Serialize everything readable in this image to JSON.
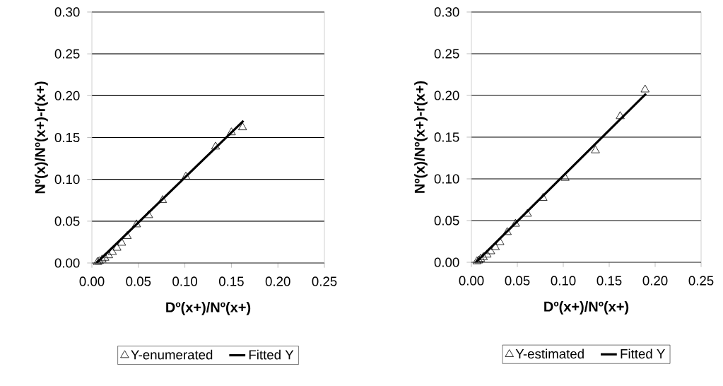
{
  "chart_data": [
    {
      "type": "scatter",
      "xlabel": "Dº(x+)/Nº(x+)",
      "ylabel": "Nº(x)/Nº(x+)-r(x+)",
      "xlim": [
        0,
        0.25
      ],
      "ylim": [
        0,
        0.3
      ],
      "xticks": [
        {
          "value": 0,
          "label": "0.00"
        },
        {
          "value": 0.05,
          "label": "0.05"
        },
        {
          "value": 0.1,
          "label": "0.10"
        },
        {
          "value": 0.15,
          "label": "0.15"
        },
        {
          "value": 0.2,
          "label": "0.20"
        },
        {
          "value": 0.25,
          "label": "0.25"
        }
      ],
      "yticks": [
        {
          "value": 0,
          "label": "0.00"
        },
        {
          "value": 0.05,
          "label": "0.05"
        },
        {
          "value": 0.1,
          "label": "0.10"
        },
        {
          "value": 0.15,
          "label": "0.15"
        },
        {
          "value": 0.2,
          "label": "0.20"
        },
        {
          "value": 0.25,
          "label": "0.25"
        },
        {
          "value": 0.3,
          "label": "0.30"
        }
      ],
      "grid": "y",
      "legend": "bottom",
      "series": [
        {
          "name": "Y-enumerated",
          "marker": "triangle",
          "color": "#000000",
          "x": [
            0.006,
            0.008,
            0.011,
            0.014,
            0.018,
            0.022,
            0.027,
            0.032,
            0.038,
            0.048,
            0.061,
            0.076,
            0.101,
            0.133,
            0.15,
            0.162
          ],
          "values": [
            0.001,
            0.002,
            0.004,
            0.006,
            0.009,
            0.013,
            0.018,
            0.024,
            0.032,
            0.046,
            0.057,
            0.075,
            0.103,
            0.139,
            0.156,
            0.162
          ]
        },
        {
          "name": "Fitted Y",
          "type": "line",
          "marker": "none",
          "line_style": "solid",
          "color": "#000000",
          "x": [
            0.005,
            0.163
          ],
          "values": [
            0.0,
            0.17
          ]
        }
      ]
    },
    {
      "type": "scatter",
      "xlabel": "Dº(x+)/Nº(x+)",
      "ylabel": "Nº(x)/Nº(x+)-r(x+)",
      "xlim": [
        0,
        0.25
      ],
      "ylim": [
        0,
        0.3
      ],
      "xticks": [
        {
          "value": 0,
          "label": "0.00"
        },
        {
          "value": 0.05,
          "label": "0.05"
        },
        {
          "value": 0.1,
          "label": "0.10"
        },
        {
          "value": 0.15,
          "label": "0.15"
        },
        {
          "value": 0.2,
          "label": "0.20"
        },
        {
          "value": 0.25,
          "label": "0.25"
        }
      ],
      "yticks": [
        {
          "value": 0,
          "label": "0.00"
        },
        {
          "value": 0.05,
          "label": "0.05"
        },
        {
          "value": 0.1,
          "label": "0.10"
        },
        {
          "value": 0.15,
          "label": "0.15"
        },
        {
          "value": 0.2,
          "label": "0.20"
        },
        {
          "value": 0.25,
          "label": "0.25"
        },
        {
          "value": 0.3,
          "label": "0.30"
        }
      ],
      "grid": "y",
      "legend": "bottom",
      "series": [
        {
          "name": "Y-estimated",
          "marker": "triangle",
          "color": "#000000",
          "x": [
            0.006,
            0.008,
            0.01,
            0.013,
            0.017,
            0.021,
            0.026,
            0.031,
            0.039,
            0.048,
            0.061,
            0.078,
            0.102,
            0.135,
            0.162,
            0.189
          ],
          "values": [
            0.001,
            0.002,
            0.004,
            0.006,
            0.009,
            0.013,
            0.018,
            0.024,
            0.036,
            0.046,
            0.058,
            0.077,
            0.101,
            0.134,
            0.175,
            0.207
          ]
        },
        {
          "name": "Fitted Y",
          "type": "line",
          "marker": "none",
          "line_style": "solid",
          "color": "#000000",
          "x": [
            0.005,
            0.19
          ],
          "values": [
            0.0,
            0.202
          ]
        }
      ]
    }
  ]
}
